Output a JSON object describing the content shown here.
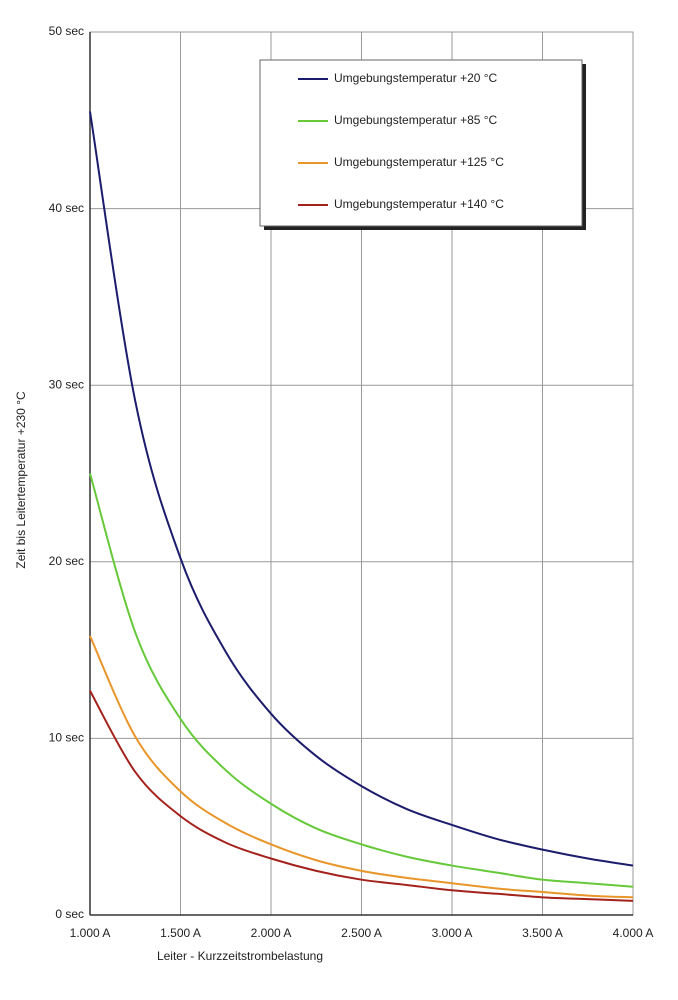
{
  "chart_data": {
    "type": "line",
    "x_label": "Leiter - Kurzzeitstrombelastung",
    "y_label": "Zeit bis Leitertemperatur +230 °C",
    "x": [
      1000,
      1250,
      1500,
      1750,
      2000,
      2250,
      2500,
      2750,
      3000,
      3250,
      3500,
      3750,
      4000
    ],
    "series": [
      {
        "name": "Umgebungstemperatur +20 °C",
        "color": "#1c1c6c",
        "values": [
          45.5,
          29.1,
          20.2,
          14.9,
          11.4,
          9.0,
          7.3,
          6.0,
          5.1,
          4.3,
          3.7,
          3.2,
          2.8
        ]
      },
      {
        "name": "Umgebungstemperatur +85 °C",
        "color": "#66c93a",
        "values": [
          25,
          16.0,
          11.1,
          8.2,
          6.3,
          4.9,
          4.0,
          3.3,
          2.8,
          2.4,
          2.0,
          1.8,
          1.6
        ]
      },
      {
        "name": "Umgebungstemperatur +125 °C",
        "color": "#e8962a",
        "values": [
          15.8,
          10.1,
          7.0,
          5.2,
          4.0,
          3.1,
          2.5,
          2.1,
          1.8,
          1.5,
          1.3,
          1.1,
          1.0
        ]
      },
      {
        "name": "Umgebungstemperatur +140 °C",
        "color": "#a3221c",
        "values": [
          12.7,
          8.1,
          5.6,
          4.1,
          3.2,
          2.5,
          2.0,
          1.7,
          1.4,
          1.2,
          1.0,
          0.9,
          0.8
        ]
      }
    ],
    "xlim": [
      1000,
      4000
    ],
    "xticks": [
      {
        "value": 1000,
        "label": "1.000 A"
      },
      {
        "value": 1500,
        "label": "1.500 A"
      },
      {
        "value": 2000,
        "label": "2.000 A"
      },
      {
        "value": 2500,
        "label": "2.500 A"
      },
      {
        "value": 3000,
        "label": "3.000 A"
      },
      {
        "value": 3500,
        "label": "3.500 A"
      },
      {
        "value": 4000,
        "label": "4.000 A"
      }
    ],
    "ylim": [
      0,
      50
    ],
    "yticks": [
      {
        "value": 0,
        "label": "0 sec"
      },
      {
        "value": 10,
        "label": "10 sec"
      },
      {
        "value": 20,
        "label": "20 sec"
      },
      {
        "value": 30,
        "label": "30 sec"
      },
      {
        "value": 40,
        "label": "40 sec"
      },
      {
        "value": 50,
        "label": "50 sec"
      }
    ],
    "grid": true,
    "legend": "top-right"
  }
}
